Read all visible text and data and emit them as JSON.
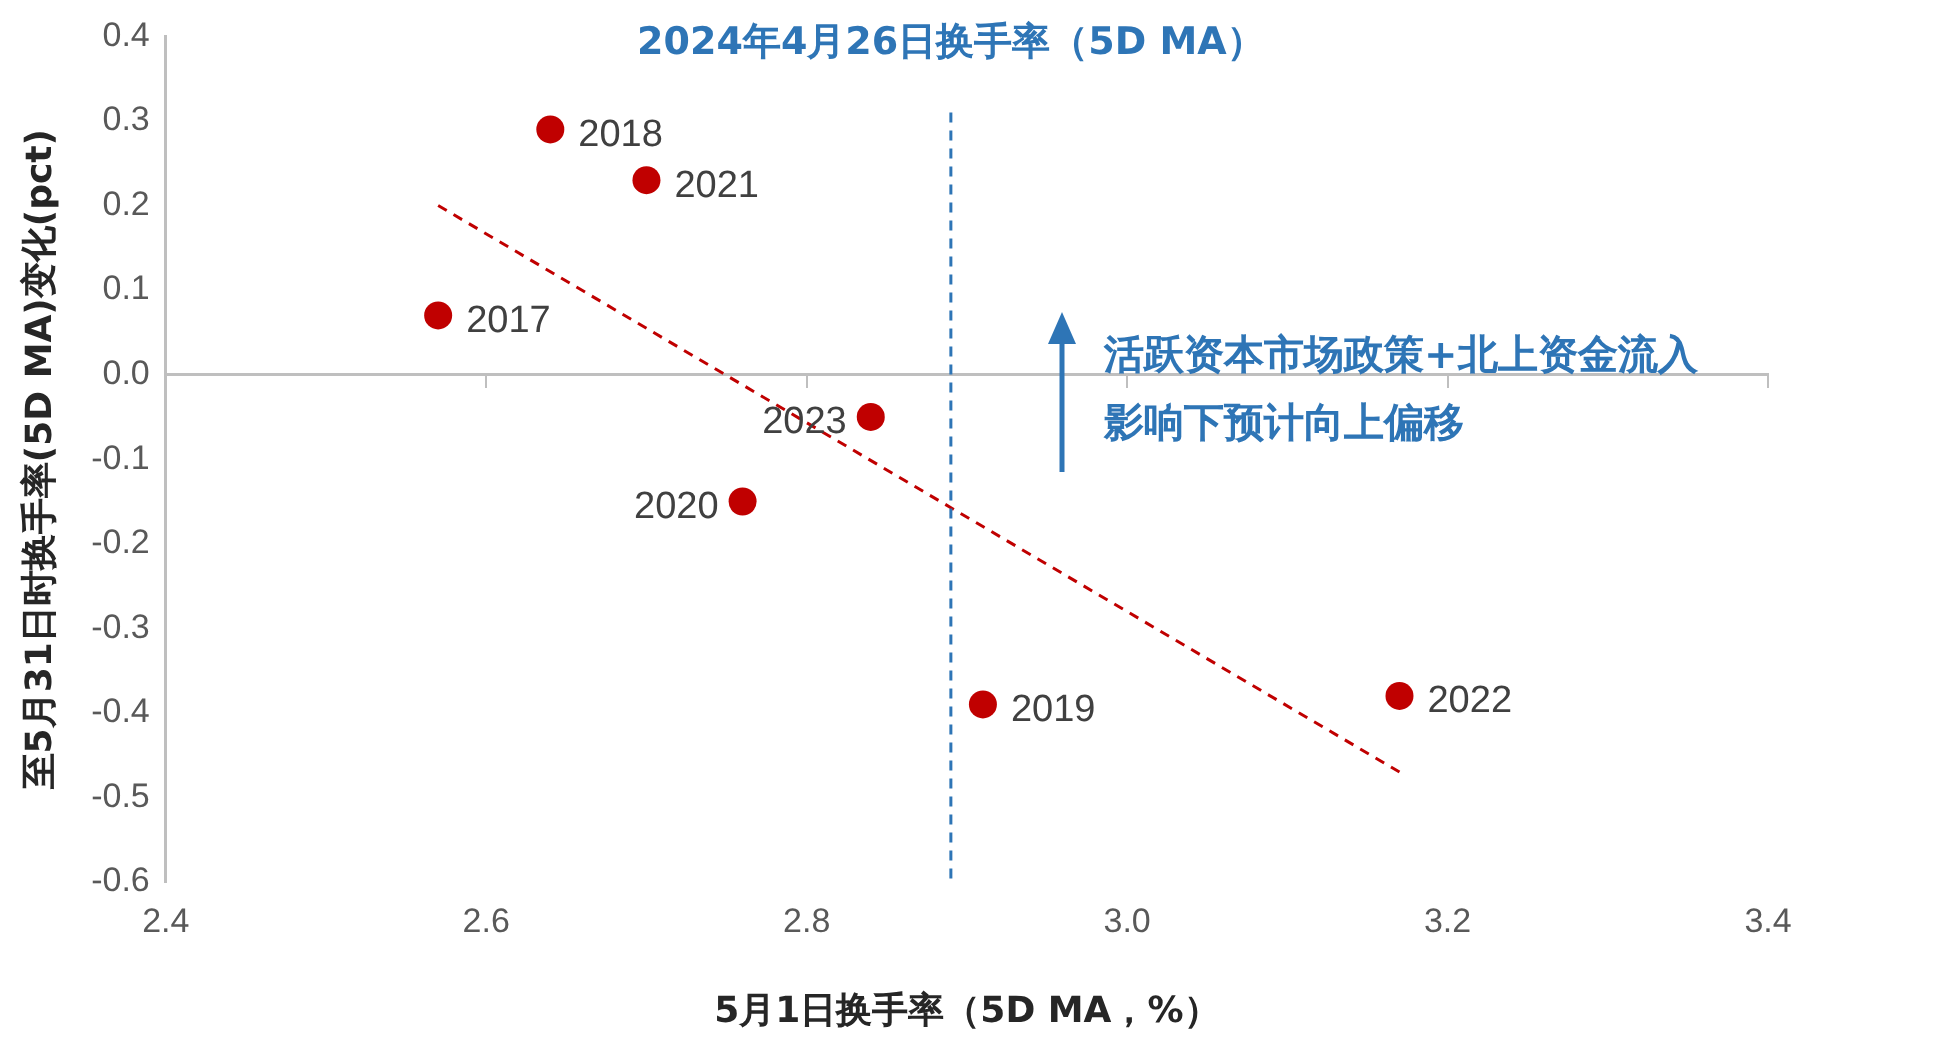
{
  "chart_data": {
    "type": "scatter",
    "xlabel": "5月1日换手率（5D MA，%）",
    "ylabel": "至5月31日时换手率(5D MA)变化(pct)",
    "xlim": [
      2.4,
      3.4
    ],
    "xticks": [
      2.4,
      2.6,
      2.8,
      {
        "value": 3,
        "label": "3.0"
      },
      3.2,
      3.4
    ],
    "ylim": [
      -0.6,
      0.4
    ],
    "yticks": [
      -0.6,
      -0.5,
      -0.4,
      -0.3,
      -0.2,
      -0.1,
      {
        "value": 0,
        "label": "0.0"
      },
      0.1,
      0.2,
      0.3,
      0.4
    ],
    "legend": false,
    "series": [
      {
        "type": "scatter",
        "name": "2017",
        "color": "#c00000",
        "marker": "circle",
        "x": [
          2.57
        ],
        "values": [
          0.07
        ]
      },
      {
        "name": "2018",
        "color": "#c00000",
        "marker": "circle",
        "x": [
          2.64
        ],
        "values": [
          0.29
        ]
      },
      {
        "name": "2019",
        "color": "#c00000",
        "marker": "circle",
        "x": [
          2.91
        ],
        "values": [
          -0.39
        ]
      },
      {
        "name": "2020",
        "color": "#c00000",
        "marker": "circle",
        "x": [
          2.76
        ],
        "values": [
          -0.15
        ]
      },
      {
        "name": "2021",
        "color": "#c00000",
        "marker": "circle",
        "x": [
          2.7
        ],
        "values": [
          0.23
        ]
      },
      {
        "name": "2022",
        "color": "#c00000",
        "marker": "circle",
        "x": [
          3.17
        ],
        "values": [
          -0.38
        ]
      },
      {
        "name": "2023",
        "color": "#c00000",
        "marker": "circle",
        "x": [
          2.84
        ],
        "values": [
          -0.05
        ]
      },
      {
        "type": "line",
        "color": "#c00000",
        "line_style": "dashed",
        "marker": "none",
        "x": [
          2.57,
          3.17
        ],
        "values": [
          0.2,
          -0.47
        ]
      }
    ],
    "ref_lines": [
      {
        "axis": "x",
        "value": 2.89,
        "label": "2024年4月26日换手率（5D MA）",
        "color": "#2e75b6",
        "line_style": "dashed"
      }
    ],
    "annotations": [
      "活跃资本市场政策+北上资金流入影响下预计向上偏移"
    ]
  }
}
